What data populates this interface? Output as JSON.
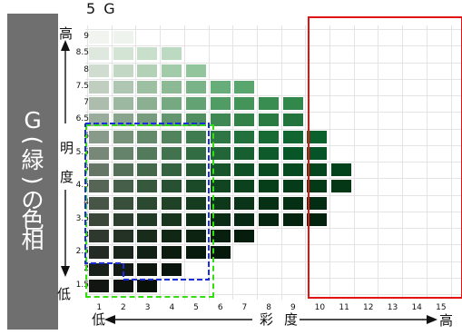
{
  "title": "5 G",
  "side_label": [
    "G",
    "(",
    "緑",
    ")",
    "の",
    "色",
    "相"
  ],
  "y_axis": {
    "top": "高",
    "bottom": "低",
    "label_chars": [
      "明",
      "度"
    ],
    "ticks": [
      "9",
      "8.5",
      "8",
      "7.5",
      "7",
      "6.5",
      "6",
      "5.5",
      "5",
      "4.5",
      "4",
      "3.5",
      "3",
      "2.5",
      "2",
      "1.5"
    ]
  },
  "x_axis": {
    "left": "低",
    "right": "高",
    "label": [
      "彩",
      "度"
    ],
    "ticks": [
      "1",
      "2",
      "3",
      "4",
      "5",
      "6",
      "7",
      "8",
      "9",
      "10",
      "11",
      "12",
      "13",
      "14",
      "15"
    ]
  },
  "chips": {
    "9": {
      "max": 2,
      "colors": [
        "#f2f4f0",
        "#eef3ee"
      ]
    },
    "8.5": {
      "max": 4,
      "colors": [
        "#dfe8df",
        "#d3e3d4",
        "#c8dfcb",
        "#bcdac1"
      ]
    },
    "8": {
      "max": 5,
      "colors": [
        "#cfdccf",
        "#c2d8c5",
        "#b2d1b7",
        "#a2cba9",
        "#92c59c"
      ]
    },
    "7.5": {
      "max": 7,
      "colors": [
        "#bfcebf",
        "#afc7b2",
        "#9dc0a3",
        "#8bba95",
        "#79b387",
        "#67ad79",
        "#58a66d"
      ]
    },
    "7": {
      "max": 9,
      "colors": [
        "#adbdad",
        "#9db8a1",
        "#8ab091",
        "#76a981",
        "#63a272",
        "#519b64",
        "#449459",
        "#3a8d51",
        "#32874b"
      ]
    },
    "6.5": {
      "max": 9,
      "colors": [
        "#9aac9b",
        "#89a48d",
        "#769c7d",
        "#63956e",
        "#508e60",
        "#3f8753",
        "#338049",
        "#2a7a42",
        "#22743c"
      ]
    },
    "6": {
      "max": 10,
      "colors": [
        "#889a89",
        "#76937a",
        "#638b6b",
        "#51845d",
        "#3f7d50",
        "#2f7645",
        "#22703b",
        "#186a34",
        "#106530",
        "#0b612d"
      ]
    },
    "5.5": {
      "max": 10,
      "colors": [
        "#778878",
        "#65826a",
        "#537a5b",
        "#42734e",
        "#316c42",
        "#226538",
        "#175f30",
        "#0e5a2b",
        "#085628",
        "#055326"
      ]
    },
    "5": {
      "max": 11,
      "colors": [
        "#667666",
        "#547059",
        "#43684b",
        "#34613f",
        "#255a34",
        "#18542b",
        "#0f4f25",
        "#094b21",
        "#06481f",
        "#04451d",
        "#03431c"
      ]
    },
    "4.5": {
      "max": 11,
      "colors": [
        "#566556",
        "#455f4a",
        "#36583d",
        "#285133",
        "#1b4a29",
        "#114522",
        "#0b411d",
        "#073e1a",
        "#053b18",
        "#043917",
        "#033716"
      ]
    },
    "4": {
      "max": 10,
      "colors": [
        "#475547",
        "#384f3c",
        "#2b4930",
        "#1f4226",
        "#153c1f",
        "#0e381a",
        "#093417",
        "#063115",
        "#042f13",
        "#032d12"
      ]
    },
    "3.5": {
      "max": 10,
      "colors": [
        "#3a463a",
        "#2d402f",
        "#213a25",
        "#17341d",
        "#0f2f18",
        "#0a2b14",
        "#072812",
        "#052610",
        "#04240f",
        "#03220e"
      ]
    },
    "3": {
      "max": 7,
      "colors": [
        "#2e382f",
        "#233224",
        "#192c1c",
        "#112716",
        "#0c2312",
        "#081f0f",
        "#061d0d"
      ]
    },
    "2.5": {
      "max": 6,
      "colors": [
        "#232b24",
        "#1a261b",
        "#122115",
        "#0c1d10",
        "#08190d",
        "#06170b"
      ]
    },
    "2": {
      "max": 4,
      "colors": [
        "#1a201a",
        "#131b14",
        "#0d170f",
        "#09140c"
      ]
    },
    "1.5": {
      "max": 3,
      "colors": [
        "#121612",
        "#0d120e",
        "#09100a"
      ]
    }
  },
  "colors": {
    "frame_red": "#e01414",
    "box_blue": "#1a2ee0",
    "box_green": "#33dd11",
    "side_band": "#6f6f6f"
  }
}
